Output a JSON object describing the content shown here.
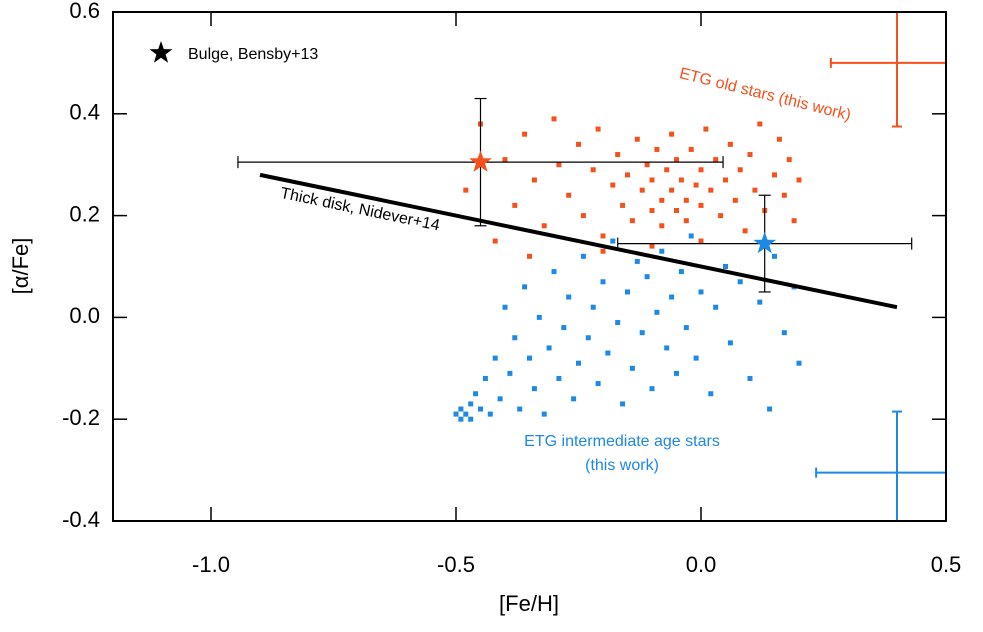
{
  "chart_data": {
    "type": "scatter",
    "xlabel": "[Fe/H]",
    "ylabel": "[α/Fe]",
    "xlim": [
      -1.2,
      0.5
    ],
    "ylim": [
      -0.4,
      0.6
    ],
    "xticks": [
      {
        "value": -1,
        "label": "-1.0"
      },
      -0.5,
      {
        "value": 0,
        "label": "0.0"
      },
      0.5
    ],
    "yticks": [
      -0.4,
      -0.2,
      {
        "value": 0,
        "label": "0.0"
      },
      0.2,
      0.4,
      0.6
    ],
    "series": [
      {
        "name": "ETG old stars (this work)",
        "color": "#f4511e",
        "x": [
          -0.48,
          -0.45,
          -0.42,
          -0.4,
          -0.38,
          -0.36,
          -0.34,
          -0.32,
          -0.3,
          -0.29,
          -0.27,
          -0.25,
          -0.24,
          -0.22,
          -0.21,
          -0.2,
          -0.18,
          -0.17,
          -0.16,
          -0.15,
          -0.14,
          -0.13,
          -0.12,
          -0.11,
          -0.1,
          -0.1,
          -0.09,
          -0.08,
          -0.08,
          -0.07,
          -0.06,
          -0.06,
          -0.05,
          -0.05,
          -0.04,
          -0.03,
          -0.03,
          -0.02,
          -0.01,
          0.0,
          0.0,
          0.01,
          0.02,
          0.03,
          0.04,
          0.05,
          0.06,
          0.07,
          0.08,
          0.09,
          0.1,
          0.11,
          0.12,
          0.13,
          0.15,
          0.16,
          0.17,
          0.18,
          0.19,
          0.2,
          -0.2,
          -0.1,
          0.0,
          -0.35
        ],
        "values": [
          0.25,
          0.38,
          0.15,
          0.31,
          0.22,
          0.36,
          0.27,
          0.18,
          0.39,
          0.3,
          0.24,
          0.34,
          0.2,
          0.29,
          0.37,
          0.16,
          0.26,
          0.32,
          0.22,
          0.28,
          0.19,
          0.35,
          0.25,
          0.3,
          0.21,
          0.27,
          0.33,
          0.23,
          0.18,
          0.29,
          0.25,
          0.36,
          0.21,
          0.31,
          0.27,
          0.23,
          0.19,
          0.33,
          0.26,
          0.29,
          0.22,
          0.37,
          0.25,
          0.31,
          0.2,
          0.27,
          0.34,
          0.23,
          0.29,
          0.17,
          0.32,
          0.25,
          0.38,
          0.21,
          0.28,
          0.35,
          0.24,
          0.31,
          0.19,
          0.27,
          0.13,
          0.14,
          0.15,
          0.12
        ]
      },
      {
        "name": "ETG intermediate age stars",
        "name_note": "(this work)",
        "color": "#1e88e5",
        "x": [
          -0.5,
          -0.49,
          -0.49,
          -0.48,
          -0.47,
          -0.47,
          -0.46,
          -0.45,
          -0.44,
          -0.43,
          -0.42,
          -0.41,
          -0.4,
          -0.39,
          -0.38,
          -0.37,
          -0.36,
          -0.35,
          -0.34,
          -0.33,
          -0.32,
          -0.31,
          -0.3,
          -0.29,
          -0.28,
          -0.27,
          -0.26,
          -0.25,
          -0.24,
          -0.23,
          -0.22,
          -0.21,
          -0.2,
          -0.19,
          -0.18,
          -0.17,
          -0.16,
          -0.15,
          -0.14,
          -0.13,
          -0.12,
          -0.11,
          -0.1,
          -0.09,
          -0.08,
          -0.07,
          -0.06,
          -0.05,
          -0.04,
          -0.03,
          -0.02,
          -0.01,
          0.0,
          0.02,
          0.03,
          0.05,
          0.06,
          0.08,
          0.1,
          0.12,
          0.14,
          0.15,
          0.17,
          0.19,
          0.2
        ],
        "values": [
          -0.19,
          -0.2,
          -0.18,
          -0.19,
          -0.17,
          -0.2,
          -0.15,
          -0.18,
          -0.12,
          -0.19,
          -0.08,
          -0.16,
          0.02,
          -0.11,
          -0.04,
          -0.18,
          0.06,
          -0.08,
          -0.14,
          0.0,
          -0.19,
          -0.06,
          0.09,
          -0.12,
          -0.02,
          0.04,
          -0.16,
          -0.09,
          0.12,
          -0.04,
          0.02,
          -0.13,
          0.07,
          -0.07,
          0.15,
          -0.01,
          -0.17,
          0.05,
          -0.1,
          0.11,
          -0.03,
          0.08,
          -0.14,
          0.01,
          0.13,
          -0.06,
          0.04,
          -0.11,
          0.09,
          -0.02,
          0.16,
          -0.08,
          0.05,
          -0.15,
          0.02,
          0.1,
          -0.05,
          0.07,
          -0.12,
          0.03,
          -0.18,
          0.12,
          -0.03,
          0.06,
          -0.09
        ]
      }
    ],
    "bensby": {
      "name": "Bulge, Bensby+13",
      "legend_color": "#000000",
      "x": [
        -0.45,
        0.13
      ],
      "values": [
        0.305,
        0.145
      ],
      "xerr": [
        0.495,
        0.3
      ],
      "yerr": [
        0.125,
        0.095
      ],
      "colors": [
        "#f4511e",
        "#1e88e5"
      ],
      "errcolor": "#000000"
    },
    "typical_errors": {
      "x": [
        0.4,
        0.4
      ],
      "values": [
        0.5,
        -0.305
      ],
      "xerr": [
        0.135,
        0.165
      ],
      "yerr": [
        0.125,
        0.12
      ],
      "colors": [
        "#f4511e",
        "#1e88e5"
      ]
    },
    "thick_disk": {
      "name": "Thick disk, Nidever+14",
      "x": [
        -0.9,
        0.4
      ],
      "values": [
        0.28,
        0.02
      ],
      "color": "#000000"
    }
  }
}
